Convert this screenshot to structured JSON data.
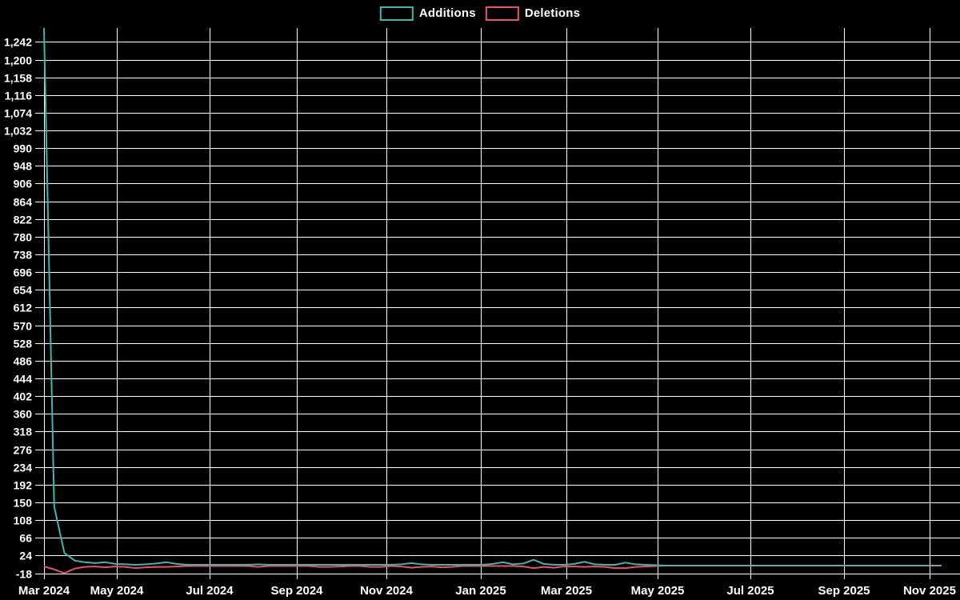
{
  "chart_data": {
    "type": "line",
    "title": "",
    "xlabel": "",
    "ylabel": "",
    "background_color": "#000000",
    "grid": true,
    "grid_color": "#ffffff",
    "axis_color": "#ffffff",
    "text_color": "#ffffff",
    "legend_position": "top-center",
    "overlap_line_color": "#7f9dab",
    "ylim": [
      -18,
      1275
    ],
    "y_tick_step": 42,
    "y_tick_values": [
      1242,
      1200,
      1158,
      1116,
      1074,
      1032,
      990,
      948,
      906,
      864,
      822,
      780,
      738,
      696,
      654,
      612,
      570,
      528,
      486,
      444,
      402,
      360,
      318,
      276,
      234,
      192,
      150,
      108,
      66,
      24,
      -18
    ],
    "x_tick_labels": [
      "Mar 2024",
      "May 2024",
      "Jul 2024",
      "Sep 2024",
      "Nov 2024",
      "Jan 2025",
      "Mar 2025",
      "May 2025",
      "Jul 2025",
      "Sep 2025",
      "Nov 2025"
    ],
    "x_unit": "week",
    "series": [
      {
        "name": "Additions",
        "color": "#3fb6ac",
        "values": [
          1275,
          140,
          30,
          12,
          8,
          6,
          8,
          4,
          3,
          2,
          3,
          5,
          8,
          4,
          2,
          2,
          2,
          2,
          2,
          2,
          2,
          3,
          2,
          2,
          2,
          2,
          2,
          2,
          2,
          2,
          2,
          2,
          2,
          2,
          2,
          3,
          6,
          3,
          2,
          2,
          2,
          2,
          2,
          2,
          4,
          8,
          3,
          5,
          14,
          4,
          2,
          2,
          4,
          9,
          3,
          2,
          2,
          7,
          3,
          2,
          1,
          0,
          0,
          0,
          0,
          0,
          0,
          0,
          0,
          0,
          0,
          0,
          0,
          0,
          0,
          0,
          0,
          0,
          0,
          0,
          0,
          0,
          0,
          0,
          0,
          0,
          0,
          0,
          0
        ]
      },
      {
        "name": "Deletions",
        "color": "#ed4f6c",
        "values": [
          -2,
          -9,
          -18,
          -7,
          -3,
          -2,
          -4,
          -2,
          -3,
          -6,
          -4,
          -3,
          -3,
          -2,
          -1,
          -1,
          -1,
          -1,
          -1,
          -1,
          -1,
          -3,
          -1,
          -1,
          -1,
          -1,
          -1,
          -3,
          -3,
          -2,
          -1,
          -1,
          -3,
          -3,
          -1,
          -2,
          -5,
          -3,
          -2,
          -4,
          -3,
          -1,
          -1,
          -1,
          -1,
          -1,
          -1,
          -2,
          -6,
          -3,
          -5,
          -2,
          -2,
          -3,
          -2,
          -3,
          -6,
          -6,
          -3,
          -2,
          -1,
          0,
          0,
          0,
          0,
          0,
          0,
          0,
          0,
          0,
          0,
          0,
          0,
          0,
          0,
          0,
          0,
          0,
          0,
          0,
          0,
          0,
          0,
          0,
          0,
          0,
          0,
          0,
          0
        ]
      }
    ]
  }
}
